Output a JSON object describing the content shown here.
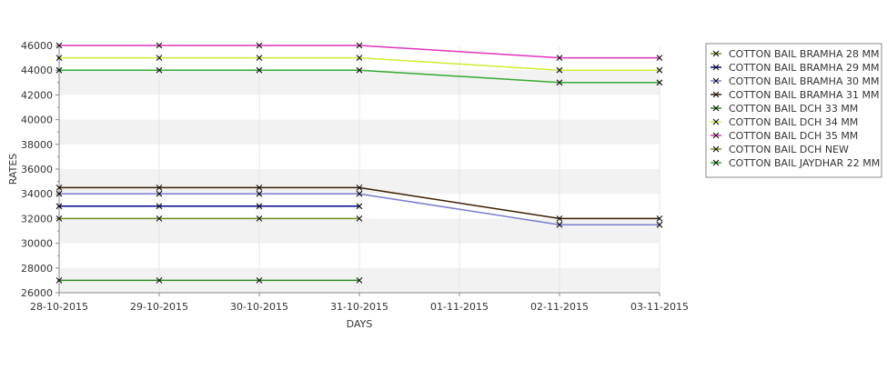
{
  "chart_data": {
    "type": "line",
    "title": "",
    "xlabel": "DAYS",
    "ylabel": "RATES",
    "x": [
      "28-10-2015",
      "29-10-2015",
      "30-10-2015",
      "31-10-2015",
      "01-11-2015",
      "02-11-2015",
      "03-11-2015"
    ],
    "ylim": [
      26000,
      46000
    ],
    "yticks": [
      26000,
      28000,
      30000,
      32000,
      34000,
      36000,
      38000,
      40000,
      42000,
      44000,
      46000
    ],
    "grid": true,
    "legend_position": "right",
    "series": [
      {
        "name": "COTTON BAIL BRAMHA 28 MM",
        "color": "#6b8e23",
        "values": [
          32000,
          32000,
          32000,
          32000,
          null,
          null,
          null
        ]
      },
      {
        "name": "COTTON BAIL BRAMHA 29 MM",
        "color": "#00008b",
        "values": [
          33000,
          33000,
          33000,
          33000,
          null,
          null,
          null
        ]
      },
      {
        "name": "COTTON BAIL BRAMHA 30 MM",
        "color": "#7b7bcf",
        "values": [
          34000,
          34000,
          34000,
          34000,
          null,
          31500,
          31500
        ]
      },
      {
        "name": "COTTON BAIL BRAMHA 31 MM",
        "color": "#3a1f00",
        "values": [
          34500,
          34500,
          34500,
          34500,
          null,
          32000,
          32000
        ]
      },
      {
        "name": "COTTON BAIL DCH 33 MM",
        "color": "#2e8b22",
        "values": [
          27000,
          27000,
          27000,
          27000,
          null,
          null,
          null
        ]
      },
      {
        "name": "COTTON BAIL DCH 34 MM",
        "color": "#ccee33",
        "values": [
          45000,
          45000,
          45000,
          45000,
          null,
          44000,
          44000
        ]
      },
      {
        "name": "COTTON BAIL DCH 35 MM",
        "color": "#dd33bb",
        "values": [
          46000,
          46000,
          46000,
          46000,
          null,
          45000,
          45000
        ]
      },
      {
        "name": "COTTON BAIL DCH NEW",
        "color": "#7a8a2a",
        "values": [
          null,
          null,
          null,
          null,
          null,
          null,
          null
        ]
      },
      {
        "name": "COTTON BAIL JAYDHAR 22 MM",
        "color": "#33aa33",
        "values": [
          44000,
          44000,
          44000,
          44000,
          null,
          43000,
          43000
        ]
      }
    ]
  }
}
